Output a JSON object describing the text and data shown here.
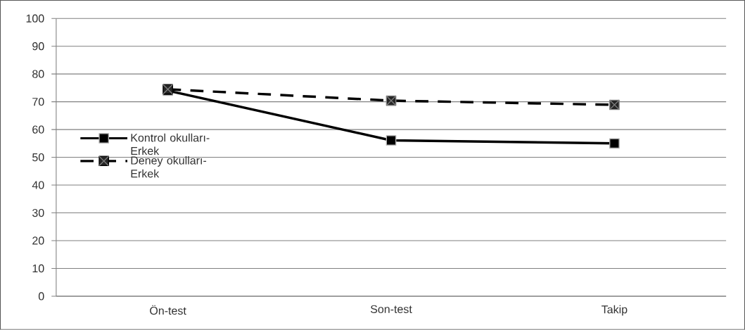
{
  "chart_data": {
    "type": "line",
    "categories": [
      "Ön-test",
      "Son-test",
      "Takip"
    ],
    "series": [
      {
        "name": "Kontrol okulları-Erkek",
        "color": "#000000",
        "values": [
          74,
          56.1,
          55
        ],
        "marker": "square",
        "line_style": "solid"
      },
      {
        "name": "Deney okulları-Erkek",
        "color": "#000000",
        "values": [
          74.5,
          70.4,
          68.9
        ],
        "marker": "square",
        "line_style": "dashed"
      }
    ],
    "ylim": [
      0,
      100
    ],
    "yticks": [
      0,
      10,
      20,
      30,
      40,
      50,
      60,
      70,
      80,
      90,
      100
    ],
    "grid": "y",
    "legend": "left"
  }
}
